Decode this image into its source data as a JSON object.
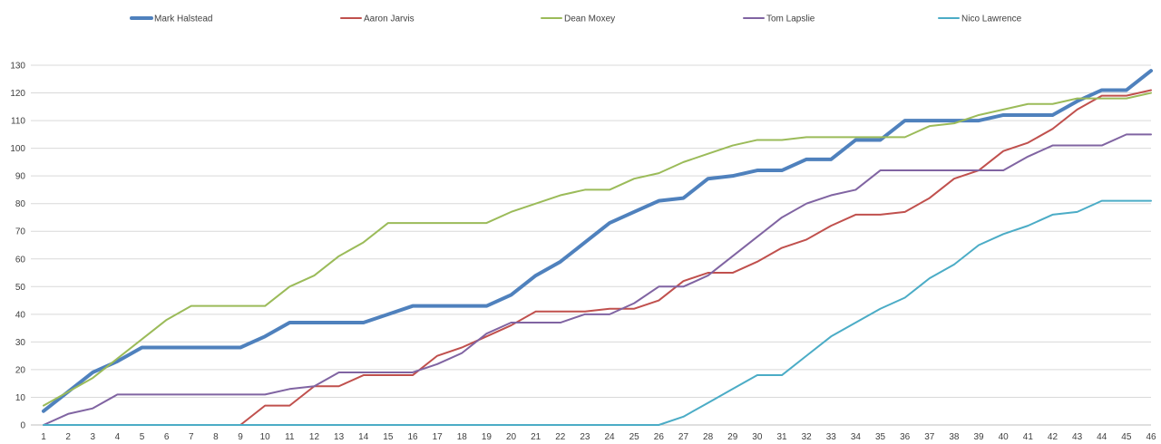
{
  "chart_data": {
    "type": "line",
    "title": "",
    "xlabel": "",
    "ylabel": "",
    "x": [
      1,
      2,
      3,
      4,
      5,
      6,
      7,
      8,
      9,
      10,
      11,
      12,
      13,
      14,
      15,
      16,
      17,
      18,
      19,
      20,
      21,
      22,
      23,
      24,
      25,
      26,
      27,
      28,
      29,
      30,
      31,
      32,
      33,
      34,
      35,
      36,
      37,
      38,
      39,
      40,
      41,
      42,
      43,
      44,
      45,
      46
    ],
    "ylim": [
      0,
      130
    ],
    "yticks": [
      0,
      10,
      20,
      30,
      40,
      50,
      60,
      70,
      80,
      90,
      100,
      110,
      120,
      130
    ],
    "grid": true,
    "legend": "top",
    "series": [
      {
        "name": "Mark Halstead",
        "color": "#4f81bd",
        "values": [
          5,
          12,
          19,
          23,
          28,
          28,
          28,
          28,
          28,
          32,
          37,
          37,
          37,
          37,
          40,
          43,
          43,
          43,
          43,
          47,
          54,
          59,
          66,
          73,
          77,
          81,
          82,
          89,
          90,
          92,
          92,
          96,
          96,
          103,
          103,
          110,
          110,
          110,
          110,
          112,
          112,
          112,
          117,
          121,
          121,
          128
        ]
      },
      {
        "name": "Aaron Jarvis",
        "color": "#c0504d",
        "values": [
          null,
          null,
          null,
          null,
          null,
          null,
          null,
          null,
          0,
          7,
          7,
          14,
          14,
          18,
          18,
          18,
          25,
          28,
          32,
          36,
          41,
          41,
          41,
          42,
          42,
          45,
          52,
          55,
          55,
          59,
          64,
          67,
          72,
          76,
          76,
          77,
          82,
          89,
          92,
          99,
          102,
          107,
          114,
          119,
          119,
          121
        ]
      },
      {
        "name": "Dean Moxey",
        "color": "#9bbb59",
        "values": [
          7,
          12,
          17,
          24,
          31,
          38,
          43,
          43,
          43,
          43,
          50,
          54,
          61,
          66,
          73,
          73,
          73,
          73,
          73,
          77,
          80,
          83,
          85,
          85,
          89,
          91,
          95,
          98,
          101,
          103,
          103,
          104,
          104,
          104,
          104,
          104,
          108,
          109,
          112,
          114,
          116,
          116,
          118,
          118,
          118,
          120
        ]
      },
      {
        "name": "Tom Lapslie",
        "color": "#8064a2",
        "values": [
          0,
          4,
          6,
          11,
          11,
          11,
          11,
          11,
          11,
          11,
          13,
          14,
          19,
          19,
          19,
          19,
          22,
          26,
          33,
          37,
          37,
          37,
          40,
          40,
          44,
          50,
          50,
          54,
          61,
          68,
          75,
          80,
          83,
          85,
          92,
          92,
          92,
          92,
          92,
          92,
          97,
          101,
          101,
          101,
          105,
          105
        ]
      },
      {
        "name": "Nico Lawrence",
        "color": "#4bacc6",
        "values": [
          0,
          0,
          0,
          0,
          0,
          0,
          0,
          0,
          0,
          0,
          0,
          0,
          0,
          0,
          0,
          0,
          0,
          0,
          0,
          0,
          0,
          0,
          0,
          0,
          0,
          0,
          3,
          8,
          13,
          18,
          18,
          25,
          32,
          37,
          42,
          46,
          53,
          58,
          65,
          69,
          72,
          76,
          77,
          81,
          81,
          81
        ]
      }
    ]
  }
}
